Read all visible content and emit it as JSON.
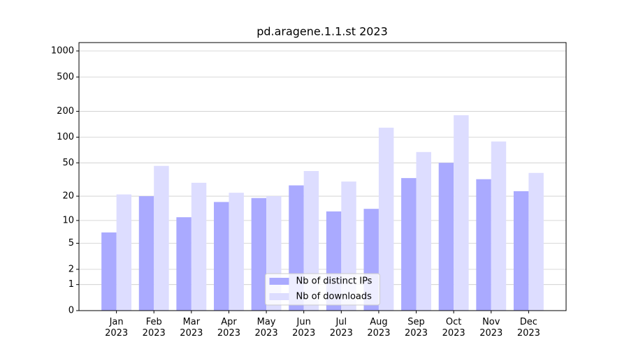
{
  "chart_data": {
    "type": "bar",
    "title": "pd.aragene.1.1.st 2023",
    "categories": [
      [
        "Jan",
        "2023"
      ],
      [
        "Feb",
        "2023"
      ],
      [
        "Mar",
        "2023"
      ],
      [
        "Apr",
        "2023"
      ],
      [
        "May",
        "2023"
      ],
      [
        "Jun",
        "2023"
      ],
      [
        "Jul",
        "2023"
      ],
      [
        "Aug",
        "2023"
      ],
      [
        "Sep",
        "2023"
      ],
      [
        "Oct",
        "2023"
      ],
      [
        "Nov",
        "2023"
      ],
      [
        "Dec",
        "2023"
      ]
    ],
    "series": [
      {
        "name": "Nb of distinct IPs",
        "color": "#aaaaff",
        "values": [
          7,
          20,
          11,
          17,
          19,
          27,
          13,
          14,
          33,
          50,
          32,
          23
        ]
      },
      {
        "name": "Nb of downloads",
        "color": "#ddddff",
        "values": [
          21,
          46,
          29,
          22,
          20,
          40,
          30,
          129,
          67,
          180,
          89,
          38
        ]
      }
    ],
    "yscale": "log1p",
    "ylim": [
      0,
      1250
    ],
    "yticks": [
      0,
      1,
      2,
      5,
      10,
      20,
      50,
      100,
      200,
      500,
      1000
    ],
    "grid": true,
    "legend": "lower center"
  }
}
